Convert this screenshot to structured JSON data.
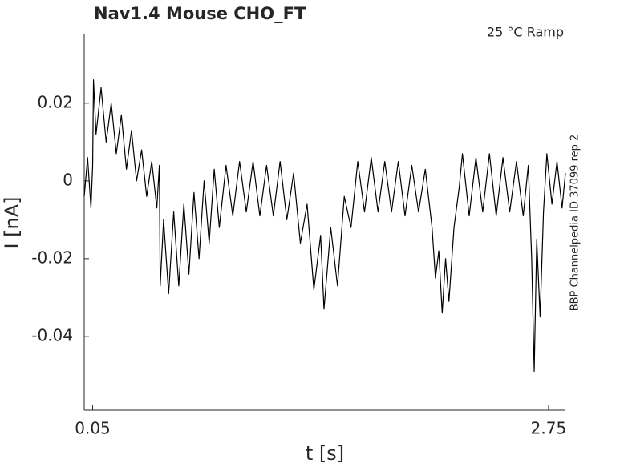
{
  "chart_data": {
    "type": "line",
    "title": "Nav1.4  Mouse  CHO_FT",
    "annotation": "25 °C  Ramp",
    "side_label": "BBP Channelpedia ID 37099 rep 2",
    "x_label": "t [s]",
    "y_label": "I [nA]",
    "xlim": [
      0,
      2.85
    ],
    "ylim": [
      -0.059,
      0.0377
    ],
    "xticks": [
      0.05,
      2.75
    ],
    "yticks": [
      -0.04,
      -0.02,
      0,
      0.02
    ],
    "grid": false,
    "series": [
      {
        "color": "#000000",
        "x": [
          0.0,
          0.02,
          0.04,
          0.05,
          0.055,
          0.07,
          0.1,
          0.13,
          0.16,
          0.19,
          0.22,
          0.25,
          0.28,
          0.31,
          0.34,
          0.37,
          0.4,
          0.43,
          0.445,
          0.45,
          0.47,
          0.5,
          0.53,
          0.56,
          0.59,
          0.62,
          0.65,
          0.68,
          0.71,
          0.74,
          0.77,
          0.8,
          0.84,
          0.88,
          0.92,
          0.96,
          1.0,
          1.04,
          1.08,
          1.12,
          1.16,
          1.2,
          1.24,
          1.28,
          1.32,
          1.36,
          1.4,
          1.42,
          1.46,
          1.5,
          1.54,
          1.58,
          1.62,
          1.66,
          1.7,
          1.74,
          1.78,
          1.82,
          1.86,
          1.9,
          1.94,
          1.98,
          2.02,
          2.06,
          2.08,
          2.1,
          2.12,
          2.14,
          2.16,
          2.19,
          2.22,
          2.24,
          2.28,
          2.32,
          2.36,
          2.4,
          2.44,
          2.48,
          2.52,
          2.56,
          2.6,
          2.63,
          2.65,
          2.665,
          2.68,
          2.7,
          2.72,
          2.74,
          2.77,
          2.8,
          2.83,
          2.85
        ],
        "values": [
          -0.004,
          0.006,
          -0.007,
          0.004,
          0.026,
          0.012,
          0.024,
          0.01,
          0.02,
          0.007,
          0.017,
          0.003,
          0.013,
          0.0,
          0.008,
          -0.004,
          0.005,
          -0.007,
          0.004,
          -0.027,
          -0.01,
          -0.029,
          -0.008,
          -0.027,
          -0.006,
          -0.024,
          -0.003,
          -0.02,
          0.0,
          -0.016,
          0.003,
          -0.012,
          0.004,
          -0.009,
          0.005,
          -0.008,
          0.005,
          -0.009,
          0.004,
          -0.009,
          0.005,
          -0.01,
          0.002,
          -0.016,
          -0.006,
          -0.028,
          -0.014,
          -0.033,
          -0.012,
          -0.027,
          -0.004,
          -0.012,
          0.005,
          -0.008,
          0.006,
          -0.008,
          0.005,
          -0.008,
          0.005,
          -0.009,
          0.004,
          -0.008,
          0.003,
          -0.012,
          -0.025,
          -0.018,
          -0.034,
          -0.02,
          -0.031,
          -0.012,
          -0.002,
          0.007,
          -0.009,
          0.006,
          -0.008,
          0.007,
          -0.009,
          0.006,
          -0.008,
          0.005,
          -0.009,
          0.004,
          -0.02,
          -0.049,
          -0.015,
          -0.035,
          -0.008,
          0.007,
          -0.006,
          0.005,
          -0.007,
          0.002
        ]
      }
    ]
  }
}
